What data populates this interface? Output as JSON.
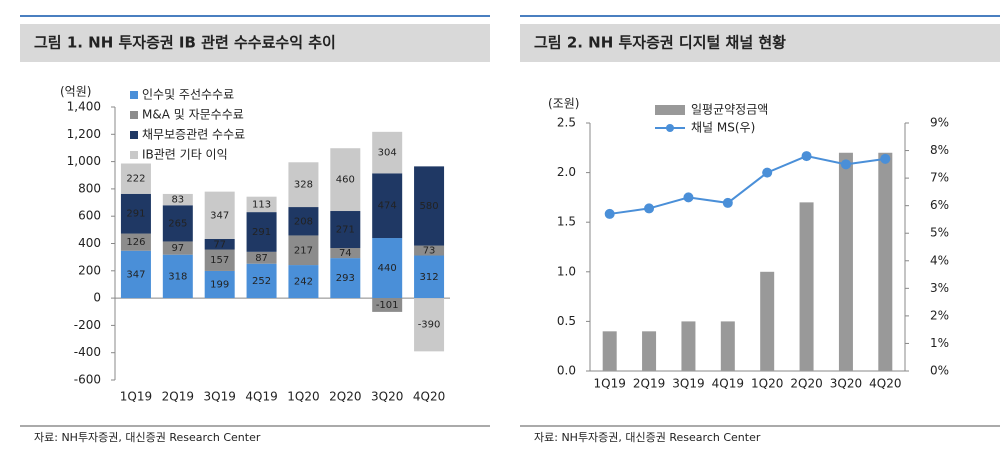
{
  "chart_data": [
    {
      "type": "stacked-bar",
      "title": "그림 1. NH 투자증권 IB 관련 수수료수익 추이",
      "y_label": "(억원)",
      "source": "자료: NH투자증권, 대신증권 Research Center",
      "categories": [
        "1Q19",
        "2Q19",
        "3Q19",
        "4Q19",
        "1Q20",
        "2Q20",
        "3Q20",
        "4Q20"
      ],
      "series": [
        {
          "name": "인수및 주선수수료",
          "color": "#4a8fd8",
          "values": [
            347,
            318,
            199,
            252,
            242,
            293,
            440,
            312
          ]
        },
        {
          "name": "M&A 및 자문수수료",
          "color": "#8c8c8c",
          "values": [
            126,
            97,
            157,
            87,
            217,
            74,
            -101,
            73
          ]
        },
        {
          "name": "채무보증관련 수수료",
          "color": "#1f3864",
          "values": [
            291,
            265,
            77,
            291,
            208,
            271,
            474,
            580
          ]
        },
        {
          "name": "IB관련 기타 이익",
          "color": "#c9c9c9",
          "values": [
            222,
            83,
            347,
            113,
            328,
            460,
            304,
            -390
          ]
        }
      ],
      "ylim": [
        -600,
        1400
      ],
      "yticks": [
        -600,
        -400,
        -200,
        0,
        200,
        400,
        600,
        800,
        {
          "value": 1000,
          "label": "1,000"
        },
        {
          "value": 1200,
          "label": "1,200"
        },
        {
          "value": 1400,
          "label": "1,400"
        }
      ],
      "legend": "top-left"
    },
    {
      "type": "combo",
      "title": "그림 2. NH 투자증권 디지털 채널 현황",
      "y_label": "(조원)",
      "source": "자료: NH투자증권, 대신증권 Research Center",
      "categories": [
        "1Q19",
        "2Q19",
        "3Q19",
        "4Q19",
        "1Q20",
        "2Q20",
        "3Q20",
        "4Q20"
      ],
      "series": [
        {
          "name": "일평균약정금액",
          "type": "bar",
          "color": "#999999",
          "values": [
            0.4,
            0.4,
            0.5,
            0.5,
            1.0,
            1.7,
            2.2,
            2.2
          ]
        },
        {
          "name": "채널 MS(우)",
          "type": "line",
          "axis": "y2",
          "color": "#4a8fd8",
          "values": [
            5.7,
            5.9,
            6.3,
            6.1,
            7.2,
            7.8,
            7.5,
            7.7
          ]
        }
      ],
      "ylim": [
        0,
        2.5
      ],
      "yticks": [
        {
          "value": 0,
          "label": "0.0"
        },
        0.5,
        {
          "value": 1,
          "label": "1.0"
        },
        1.5,
        {
          "value": 2,
          "label": "2.0"
        },
        2.5
      ],
      "y2lim": [
        0,
        9
      ],
      "y2ticks": [
        {
          "value": 0,
          "label": "0%"
        },
        {
          "value": 1,
          "label": "1%"
        },
        {
          "value": 2,
          "label": "2%"
        },
        {
          "value": 3,
          "label": "3%"
        },
        {
          "value": 4,
          "label": "4%"
        },
        {
          "value": 5,
          "label": "5%"
        },
        {
          "value": 6,
          "label": "6%"
        },
        {
          "value": 7,
          "label": "7%"
        },
        {
          "value": 8,
          "label": "8%"
        },
        {
          "value": 9,
          "label": "9%"
        }
      ],
      "legend": "top-left"
    }
  ]
}
